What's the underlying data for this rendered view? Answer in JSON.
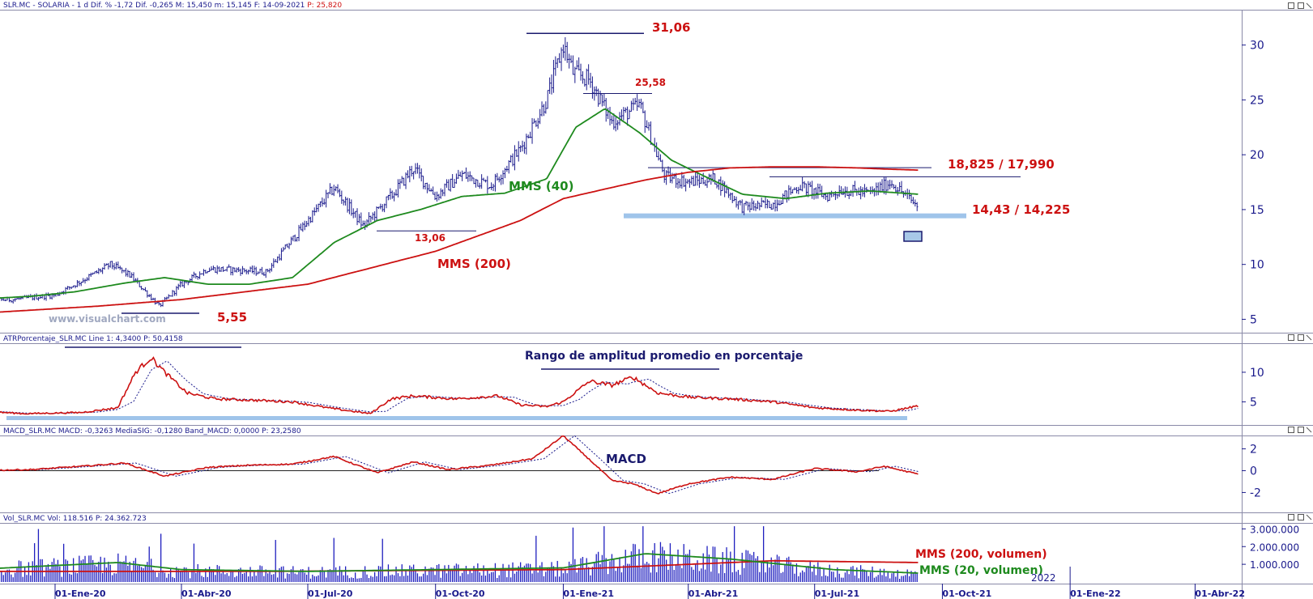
{
  "header": {
    "price_panel": {
      "text": "SLR.MC - SOLARIA - 1 d Dif. % -1,72 Dif. -0,265 M: 15,450 m: 15,145 F: 14-09-2021",
      "last": "P: 25,820"
    },
    "atr_panel": "ATRPorcentaje_SLR.MC  Line 1: 4,3400  P: 50,4158",
    "macd_panel": "MACD_SLR.MC  MACD: -0,3263  MediaSIG: -0,1280  Band_MACD: 0,0000  P: 23,2580",
    "vol_panel": "Vol_SLR.MC  Vol: 118.516  P: 24.362.723"
  },
  "watermark": "www.visualchart.com",
  "colors": {
    "axis": "#1a1a8c",
    "price": "#1a1a8c",
    "mms40": "#1e8a1e",
    "mms200": "#cc1111",
    "support": "#9fc4ea",
    "atr": "#cc1111",
    "volume": "#1f1fbf"
  },
  "chart_data": [
    {
      "type": "candlestick",
      "title": "SLR.MC - SOLARIA - 1 d",
      "x_ticks": [
        "01-Ene-20",
        "01-Abr-20",
        "01-Jul-20",
        "01-Oct-20",
        "01-Ene-21",
        "01-Abr-21",
        "01-Jul-21",
        "01-Oct-21",
        "01-Ene-22",
        "01-Abr-22"
      ],
      "ylim": [
        4,
        33
      ],
      "y_ticks": [
        5,
        10,
        15,
        20,
        25,
        30
      ],
      "price_anchors": {
        "dates": [
          "2019-11-01",
          "2019-12-01",
          "2020-01-01",
          "2020-01-20",
          "2020-02-10",
          "2020-02-24",
          "2020-03-16",
          "2020-04-01",
          "2020-04-20",
          "2020-05-10",
          "2020-06-01",
          "2020-07-01",
          "2020-07-20",
          "2020-08-10",
          "2020-09-01",
          "2020-09-15",
          "2020-10-01",
          "2020-10-20",
          "2020-11-10",
          "2020-12-01",
          "2020-12-20",
          "2021-01-01",
          "2021-01-08",
          "2021-01-20",
          "2021-02-05",
          "2021-02-25",
          "2021-03-15",
          "2021-04-01",
          "2021-04-20",
          "2021-05-10",
          "2021-06-01",
          "2021-06-20",
          "2021-07-10",
          "2021-07-20",
          "2021-08-10",
          "2021-08-25",
          "2021-09-14"
        ],
        "close": [
          6.7,
          6.8,
          7.2,
          8.5,
          10.0,
          9.0,
          6.2,
          8.2,
          9.6,
          9.5,
          9.3,
          14.0,
          17.0,
          13.5,
          16.5,
          18.8,
          16.2,
          18.2,
          17.2,
          20.5,
          25.0,
          30.0,
          27.5,
          26.8,
          23.0,
          24.5,
          18.0,
          17.5,
          17.8,
          15.2,
          15.5,
          17.2,
          16.2,
          16.8,
          16.5,
          17.5,
          15.2
        ]
      },
      "series": [
        {
          "name": "MMS (40)",
          "dates": [
            "2019-11-01",
            "2019-12-15",
            "2020-01-15",
            "2020-02-20",
            "2020-03-20",
            "2020-04-20",
            "2020-05-20",
            "2020-06-20",
            "2020-07-20",
            "2020-08-20",
            "2020-09-20",
            "2020-10-20",
            "2020-11-20",
            "2020-12-20",
            "2021-01-10",
            "2021-01-31",
            "2021-02-25",
            "2021-03-20",
            "2021-04-10",
            "2021-05-10",
            "2021-06-10",
            "2021-07-10",
            "2021-08-10",
            "2021-09-14"
          ],
          "values": [
            6.8,
            7.1,
            7.5,
            8.3,
            8.8,
            8.2,
            8.2,
            8.8,
            12.0,
            14.0,
            15.0,
            16.2,
            16.5,
            17.8,
            22.5,
            24.2,
            22.0,
            19.5,
            18.2,
            16.4,
            16.0,
            16.5,
            16.7,
            16.4
          ]
        },
        {
          "name": "MMS (200)",
          "dates": [
            "2019-11-01",
            "2020-02-01",
            "2020-04-01",
            "2020-07-01",
            "2020-10-01",
            "2020-12-01",
            "2021-01-01",
            "2021-02-01",
            "2021-03-01",
            "2021-04-01",
            "2021-05-01",
            "2021-06-01",
            "2021-07-01",
            "2021-08-01",
            "2021-08-20",
            "2021-09-14"
          ],
          "values": [
            5.5,
            6.2,
            6.8,
            8.2,
            11.2,
            14.0,
            16.0,
            16.9,
            17.7,
            18.4,
            18.8,
            18.9,
            18.9,
            18.8,
            18.7,
            18.6
          ]
        }
      ],
      "annotations": {
        "high": "31,06",
        "high2": "25,58",
        "low_pre": "13,06",
        "low": "5,55",
        "resistance": "18,825 / 17,990",
        "support": "14,43 / 14,225",
        "mms40_label": "MMS (40)",
        "mms200_label": "MMS (200)"
      },
      "levels": {
        "high": 31.06,
        "high2": 25.58,
        "low_pre": 13.06,
        "low": 5.55,
        "resistance_upper": 18.825,
        "resistance_lower": 17.99,
        "support_upper": 14.43,
        "support_lower": 14.225
      }
    },
    {
      "type": "line",
      "title": "Rango de amplitud promedio en porcentaje",
      "ylim": [
        1.5,
        14.5
      ],
      "y_ticks": [
        5,
        10
      ],
      "series": [
        {
          "name": "Line 1",
          "dates": [
            "2019-11-01",
            "2019-12-10",
            "2020-01-20",
            "2020-02-15",
            "2020-02-28",
            "2020-03-10",
            "2020-03-20",
            "2020-04-05",
            "2020-04-25",
            "2020-05-20",
            "2020-06-20",
            "2020-07-15",
            "2020-08-15",
            "2020-08-30",
            "2020-09-15",
            "2020-10-15",
            "2020-11-15",
            "2020-12-01",
            "2020-12-20",
            "2021-01-01",
            "2021-01-20",
            "2021-02-05",
            "2021-02-20",
            "2021-03-10",
            "2021-04-01",
            "2021-05-01",
            "2021-06-01",
            "2021-07-01",
            "2021-08-01",
            "2021-08-25",
            "2021-09-14"
          ],
          "values": [
            3.5,
            3.0,
            3.2,
            4.0,
            10.0,
            12.5,
            10.0,
            6.5,
            5.5,
            5.3,
            5.0,
            4.0,
            3.0,
            5.5,
            6.0,
            5.5,
            6.0,
            4.5,
            4.2,
            5.0,
            8.5,
            7.8,
            9.2,
            6.5,
            5.8,
            5.5,
            5.0,
            4.0,
            3.6,
            3.4,
            4.34
          ]
        }
      ],
      "signal_lag": 0.8
    },
    {
      "type": "line",
      "title": "MACD",
      "ylim": [
        -3.6,
        3
      ],
      "y_ticks": [
        2,
        0,
        -2
      ],
      "y_tick_labels": [
        "2",
        "0",
        "-2"
      ],
      "series": [
        {
          "name": "MACD",
          "dates": [
            "2019-11-01",
            "2019-12-15",
            "2020-01-20",
            "2020-02-20",
            "2020-03-20",
            "2020-04-20",
            "2020-05-20",
            "2020-06-20",
            "2020-07-20",
            "2020-08-20",
            "2020-09-15",
            "2020-10-10",
            "2020-11-10",
            "2020-12-10",
            "2021-01-01",
            "2021-01-20",
            "2021-02-05",
            "2021-02-20",
            "2021-03-10",
            "2021-04-01",
            "2021-05-01",
            "2021-06-01",
            "2021-07-01",
            "2021-08-01",
            "2021-08-20",
            "2021-09-14"
          ],
          "values": [
            0.0,
            0.1,
            0.4,
            0.7,
            -0.5,
            0.3,
            0.5,
            0.6,
            1.3,
            -0.2,
            0.8,
            0.1,
            0.5,
            1.1,
            3.2,
            1.0,
            -0.9,
            -1.2,
            -2.1,
            -1.2,
            -0.6,
            -0.8,
            0.2,
            -0.1,
            0.4,
            -0.33
          ]
        }
      ],
      "signal_lag": 0.6
    },
    {
      "type": "bar",
      "title": "Vol_SLR.MC",
      "ylim": [
        0,
        3200000
      ],
      "y_ticks": [
        1000000,
        2000000,
        3000000
      ],
      "y_tick_labels": [
        "1.000.000",
        "2.000.000",
        "3.000.000"
      ],
      "series": [
        {
          "name": "MMS (200, volumen)",
          "dates": [
            "2019-11-01",
            "2020-06-01",
            "2021-01-01",
            "2021-06-01",
            "2021-09-14"
          ],
          "values": [
            600000,
            600000,
            700000,
            1200000,
            1100000
          ]
        },
        {
          "name": "MMS (20, volumen)",
          "dates": [
            "2019-11-01",
            "2020-02-15",
            "2020-04-01",
            "2020-07-01",
            "2020-10-01",
            "2021-01-01",
            "2021-03-01",
            "2021-05-01",
            "2021-07-15",
            "2021-09-14"
          ],
          "values": [
            700000,
            1100000,
            700000,
            600000,
            700000,
            800000,
            1600000,
            1300000,
            700000,
            500000
          ]
        }
      ],
      "annotations": {
        "mms200_label": "MMS (200, volumen)",
        "mms20_label": "MMS (20, volumen)",
        "year_marker": "2022"
      }
    }
  ]
}
